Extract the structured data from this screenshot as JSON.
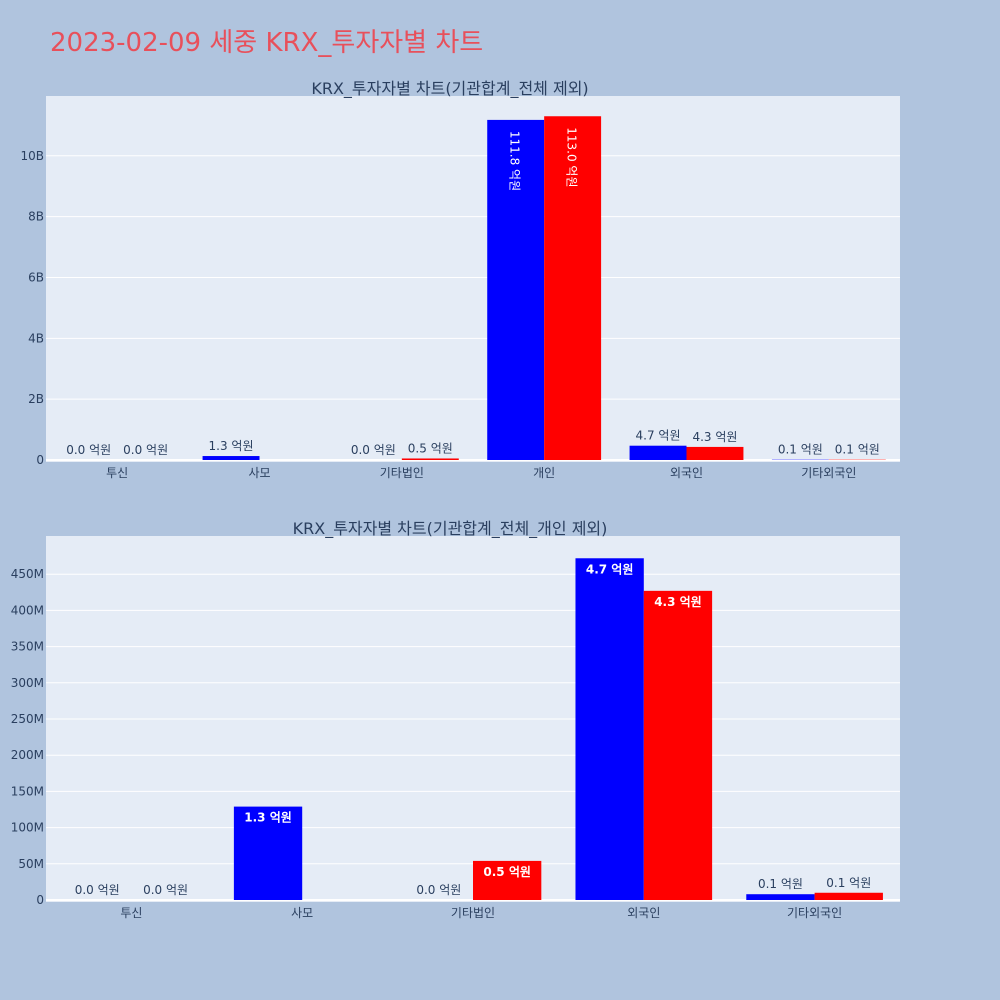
{
  "title": "2023-02-09 세중 KRX_투자자별 차트",
  "colors": {
    "background": "#b0c4de",
    "plot_bg": "#e5ecf6",
    "title": "#e8505b",
    "series1": "#0000ff",
    "series2": "#ff0000"
  },
  "chart_data": [
    {
      "type": "bar",
      "title": "KRX_투자자별 차트(기관합계_전체 제외)",
      "categories": [
        "투신",
        "사모",
        "기타법인",
        "개인",
        "외국인",
        "기타외국인"
      ],
      "series": [
        {
          "values": [
            0,
            130000000,
            0,
            11180000000,
            470000000,
            10000000
          ],
          "labels": [
            "0.0 억원",
            "1.3 억원",
            "0.0 억원",
            "111.8 억원",
            "4.7 억원",
            "0.1 억원"
          ]
        },
        {
          "values": [
            0,
            0,
            50000000,
            11300000000,
            430000000,
            10000000
          ],
          "labels": [
            "0.0 억원",
            "",
            "0.5 억원",
            "113.0 억원",
            "4.3 억원",
            "0.1 억원"
          ]
        }
      ],
      "ylim": [
        0,
        11900000000
      ],
      "yticks": [
        0,
        2000000000,
        4000000000,
        6000000000,
        8000000000,
        10000000000
      ],
      "ytick_labels": [
        "0",
        "2B",
        "4B",
        "6B",
        "8B",
        "10B"
      ],
      "grid": true
    },
    {
      "type": "bar",
      "title": "KRX_투자자별 차트(기관합계_전체_개인 제외)",
      "categories": [
        "투신",
        "사모",
        "기타법인",
        "외국인",
        "기타외국인"
      ],
      "series": [
        {
          "values": [
            0,
            129000000,
            0,
            472000000,
            8000000
          ],
          "labels": [
            "0.0 억원",
            "1.3 억원",
            "0.0 억원",
            "4.7 억원",
            "0.1 억원"
          ]
        },
        {
          "values": [
            0,
            0,
            54000000,
            427000000,
            10000000
          ],
          "labels": [
            "0.0 억원",
            "",
            "0.5 억원",
            "4.3 억원",
            "0.1 억원"
          ]
        }
      ],
      "ylim": [
        0,
        500000000
      ],
      "yticks": [
        0,
        50000000,
        100000000,
        150000000,
        200000000,
        250000000,
        300000000,
        350000000,
        400000000,
        450000000
      ],
      "ytick_labels": [
        "0",
        "50M",
        "100M",
        "150M",
        "200M",
        "250M",
        "300M",
        "350M",
        "400M",
        "450M"
      ],
      "grid": true
    }
  ]
}
